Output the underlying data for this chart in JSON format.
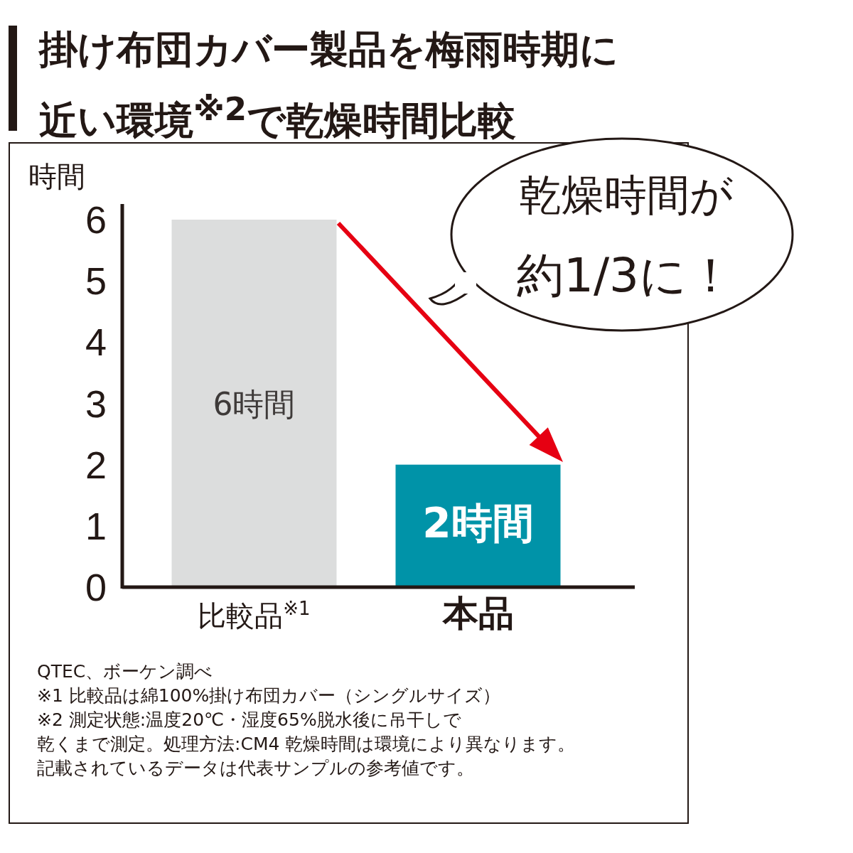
{
  "chart_data": {
    "type": "bar",
    "title": "掛け布団カバー製品を梅雨時期に近い環境$^{※2}$で乾燥時間比較",
    "ylabel": "時間",
    "categories": [
      "比較品$^{※1}$",
      "本品"
    ],
    "values": [
      6,
      2
    ],
    "colors": [
      "#dcdddd",
      "#0093a8"
    ],
    "value_labels": [
      "6時間",
      "2時間"
    ],
    "ylim": [
      0,
      6
    ],
    "yticks": [
      0,
      1,
      2,
      3,
      4,
      5,
      6
    ],
    "annotations": [
      "乾燥時間が",
      "約1/3に！",
      "QTEC、ボーケン調べ",
      "※1 比較品は綿100%掛け布団カバー（シングルサイズ）",
      "※2 測定状態:温度20℃・湿度65%脱水後に吊干しで",
      "乾くまで測定。処理方法:CM4 乾燥時間は環境により異なります。",
      "記載されているデータは代表サンプルの参考値です。"
    ]
  }
}
